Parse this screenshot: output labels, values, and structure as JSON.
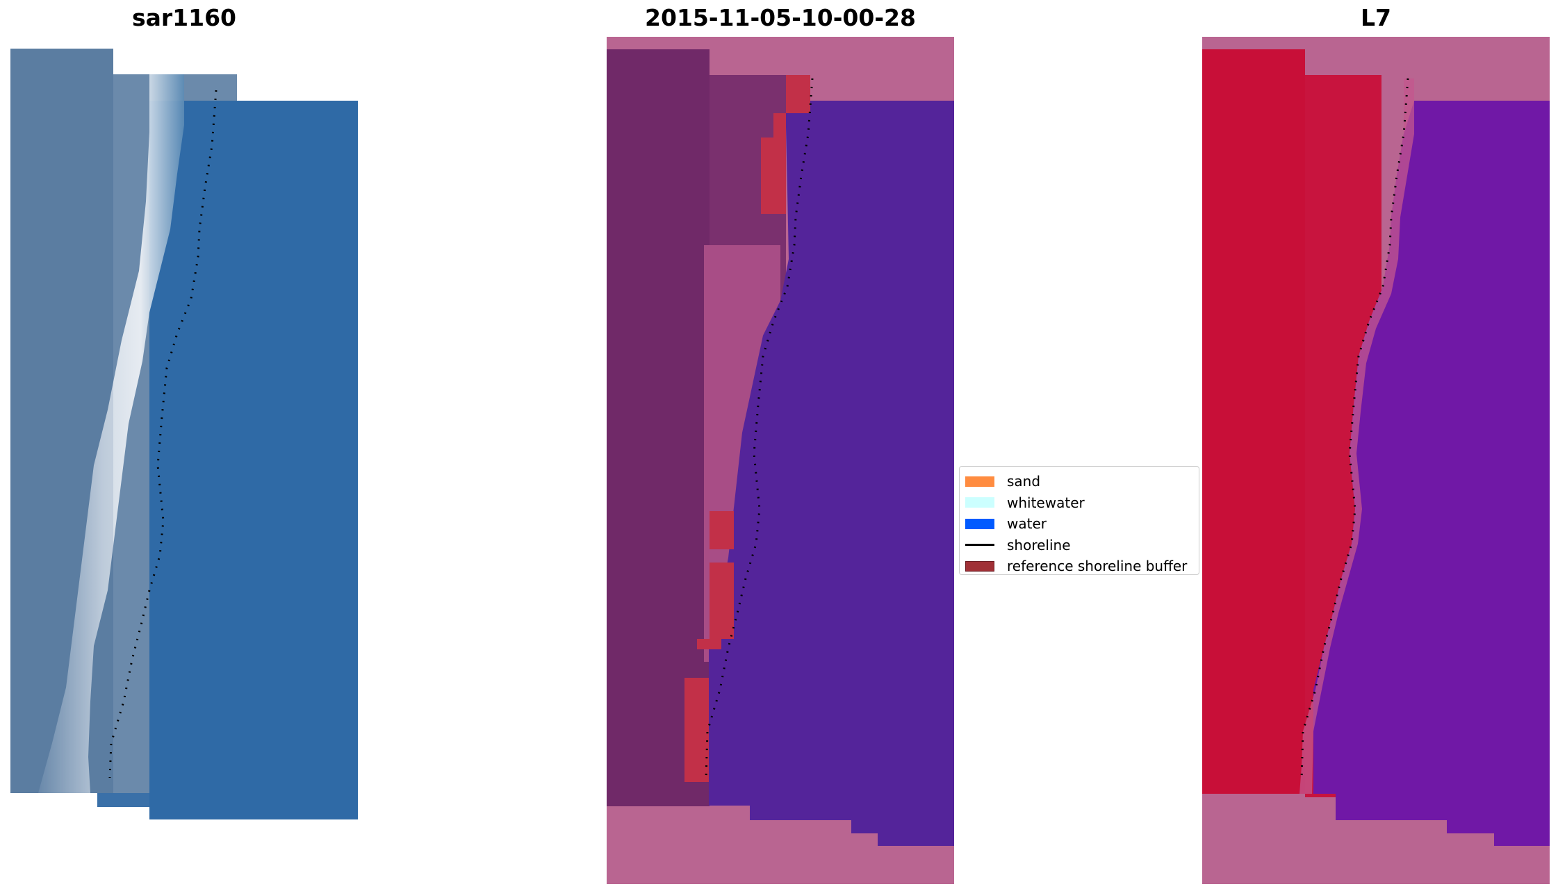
{
  "panels": [
    {
      "title": "sar1160"
    },
    {
      "title": "2015-11-05-10-00-28"
    },
    {
      "title": "L7"
    }
  ],
  "legend": {
    "items": [
      {
        "label": "sand",
        "color": "#ff8c40",
        "kind": "patch"
      },
      {
        "label": "whitewater",
        "color": "#ccffff",
        "kind": "patch"
      },
      {
        "label": "water",
        "color": "#005aff",
        "kind": "patch"
      },
      {
        "label": "shoreline",
        "color": "#000000",
        "kind": "line"
      },
      {
        "label": "reference shoreline buffer",
        "color": "#a03036",
        "kind": "patch"
      }
    ]
  },
  "colors": {
    "rgb_water": "#2f6aa6",
    "rgb_land": "#5d7fa3",
    "rgb_whitewater": "#e8ecf2",
    "class_land": "#702968",
    "class_water": "#54249a",
    "class_nodata": "#b96591",
    "class_buffer": "#c23048",
    "fc_sand": "#c80f38",
    "fc_water": "#7018a6"
  }
}
